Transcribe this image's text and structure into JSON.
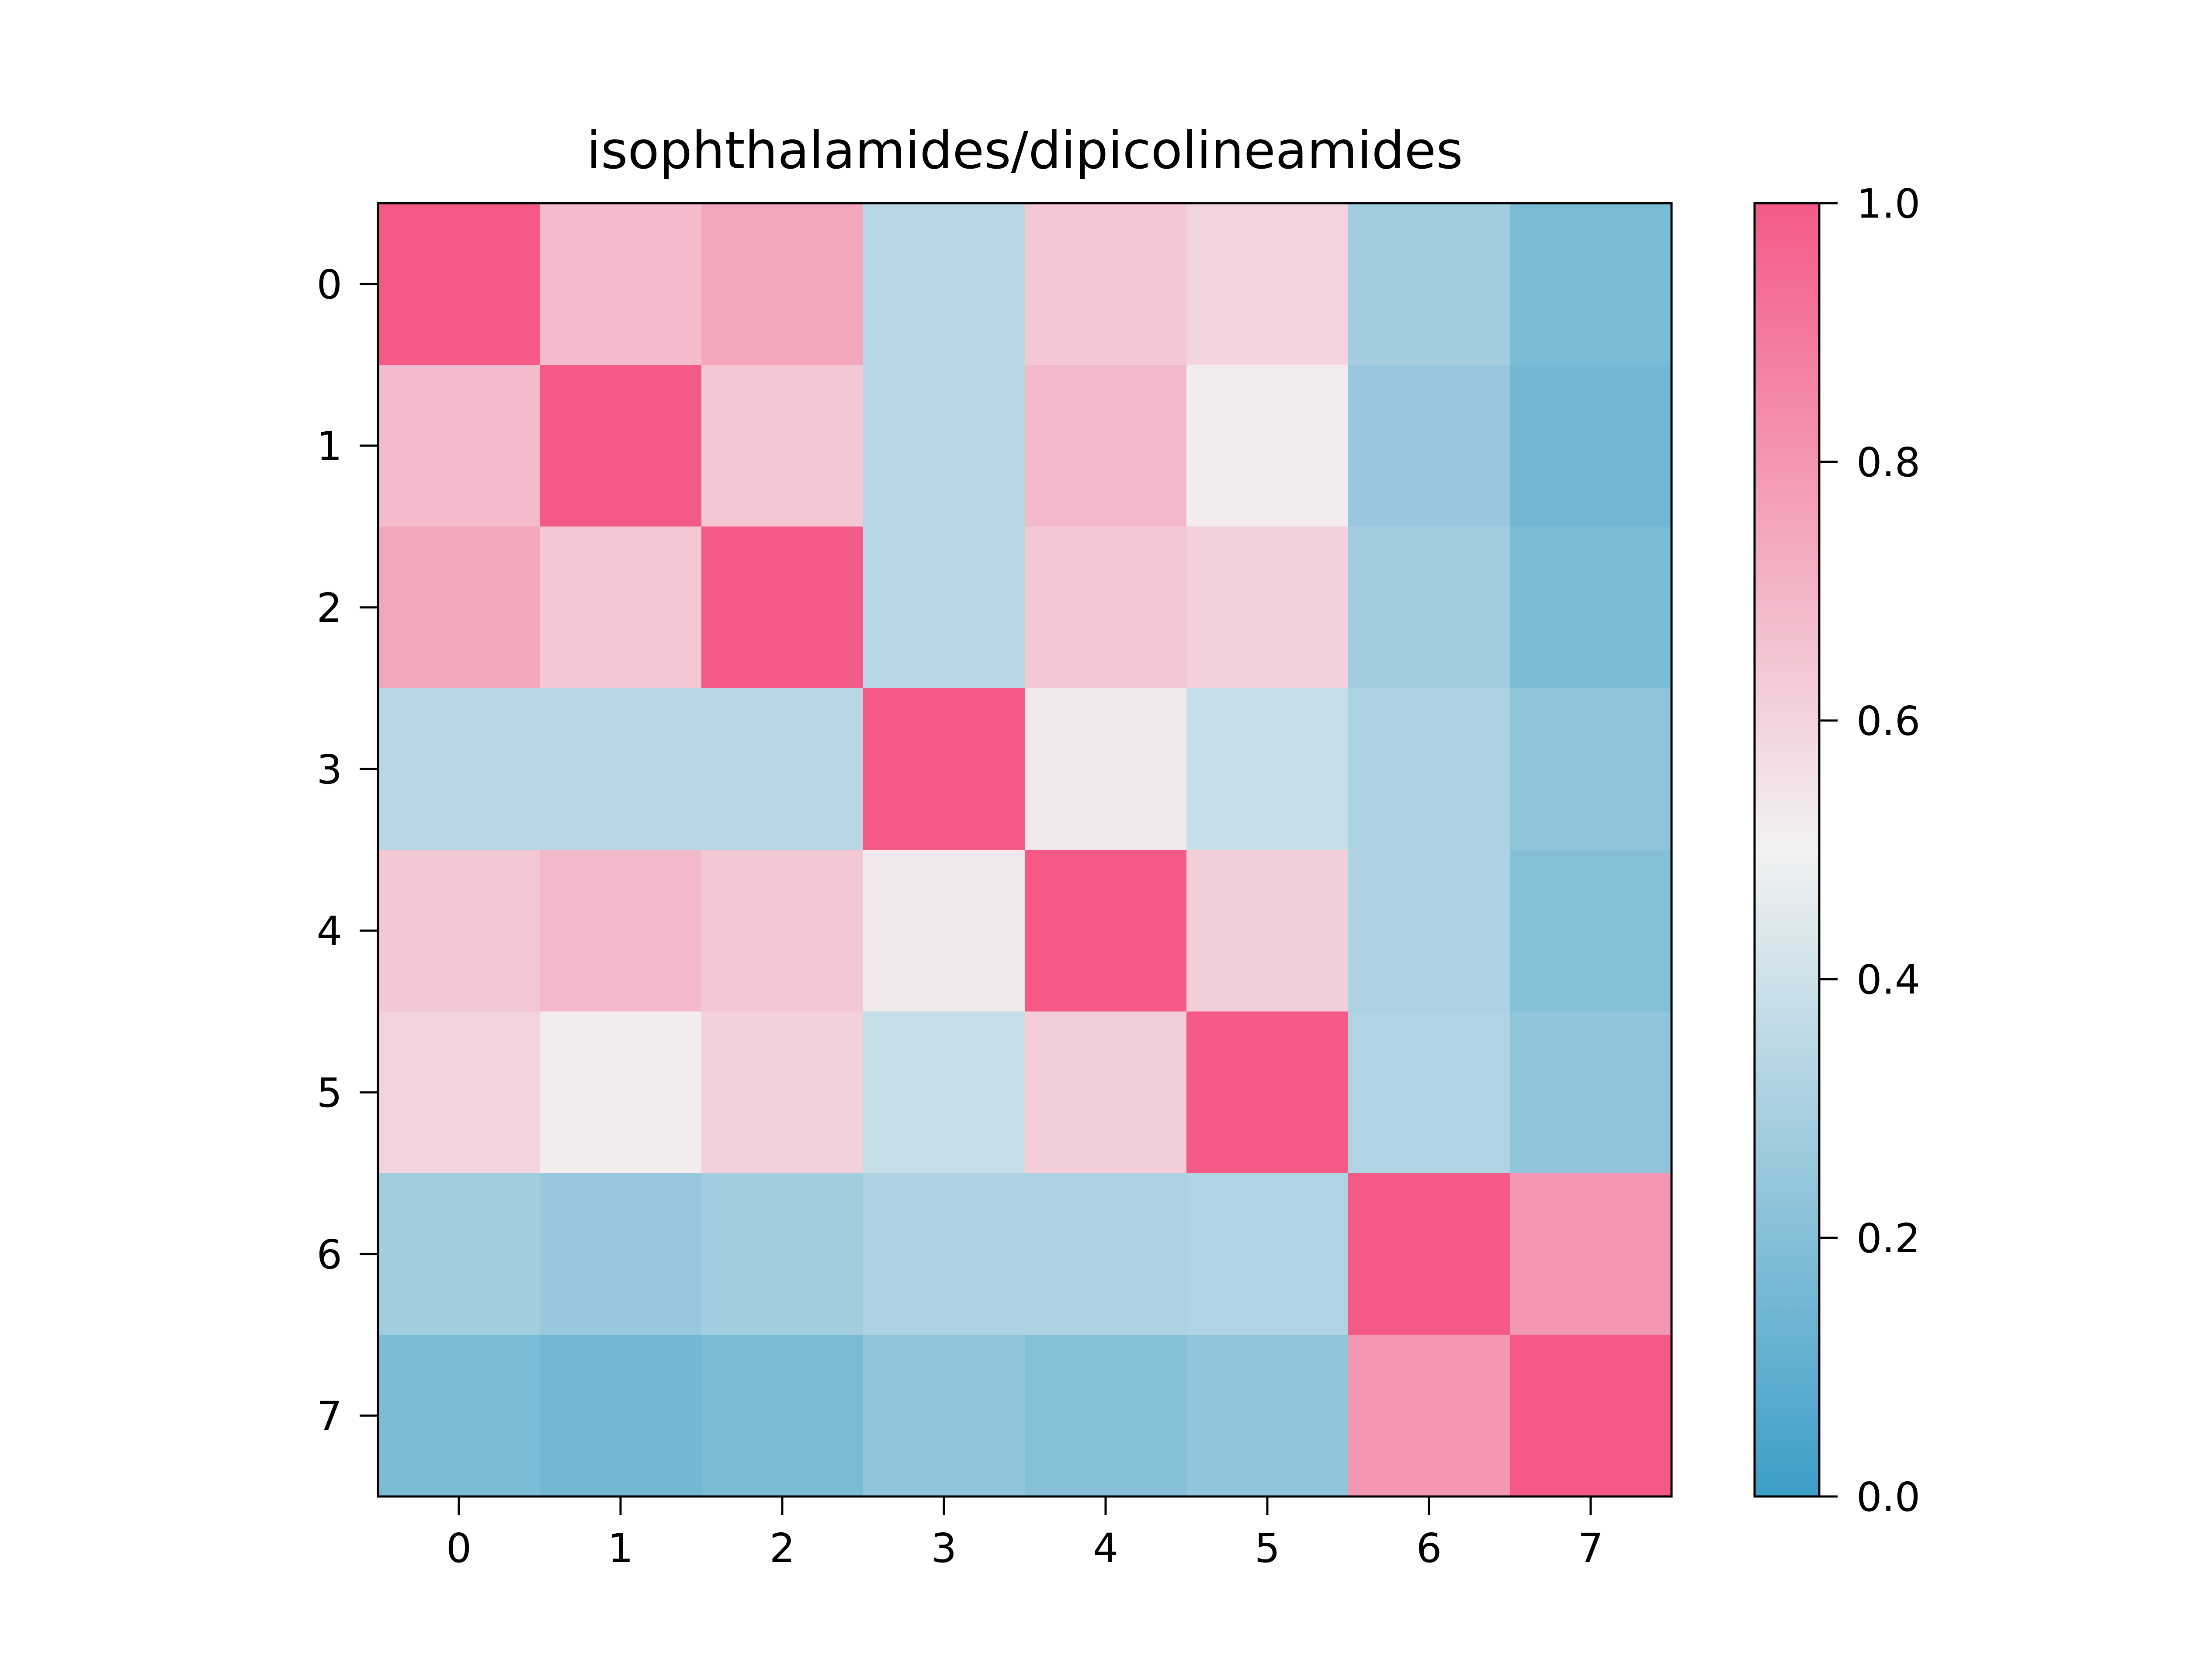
{
  "chart_data": {
    "type": "heatmap",
    "title": "isophthalamides/dipicolineamides",
    "xlabel": "",
    "ylabel": "",
    "x_categories": [
      "0",
      "1",
      "2",
      "3",
      "4",
      "5",
      "6",
      "7"
    ],
    "y_categories": [
      "0",
      "1",
      "2",
      "3",
      "4",
      "5",
      "6",
      "7"
    ],
    "values": [
      [
        1.0,
        0.68,
        0.75,
        0.34,
        0.64,
        0.6,
        0.28,
        0.17
      ],
      [
        0.68,
        1.0,
        0.64,
        0.34,
        0.69,
        0.52,
        0.25,
        0.15
      ],
      [
        0.75,
        0.64,
        1.0,
        0.34,
        0.64,
        0.61,
        0.28,
        0.17
      ],
      [
        0.34,
        0.34,
        0.34,
        1.0,
        0.53,
        0.38,
        0.31,
        0.23
      ],
      [
        0.64,
        0.69,
        0.64,
        0.53,
        1.0,
        0.62,
        0.31,
        0.2
      ],
      [
        0.6,
        0.52,
        0.61,
        0.38,
        0.62,
        1.0,
        0.32,
        0.23
      ],
      [
        0.28,
        0.25,
        0.28,
        0.31,
        0.31,
        0.32,
        1.0,
        0.8
      ],
      [
        0.17,
        0.15,
        0.17,
        0.23,
        0.2,
        0.23,
        0.8,
        1.0
      ]
    ],
    "colorbar": {
      "range": [
        0.0,
        1.0
      ],
      "ticks": [
        "0.0",
        "0.2",
        "0.4",
        "0.6",
        "0.8",
        "1.0"
      ],
      "colormap": [
        {
          "stop": 0.0,
          "color": "#3c9ec7"
        },
        {
          "stop": 0.5,
          "color": "#f2f2f2"
        },
        {
          "stop": 1.0,
          "color": "#f55a87"
        }
      ]
    },
    "grid": false
  }
}
